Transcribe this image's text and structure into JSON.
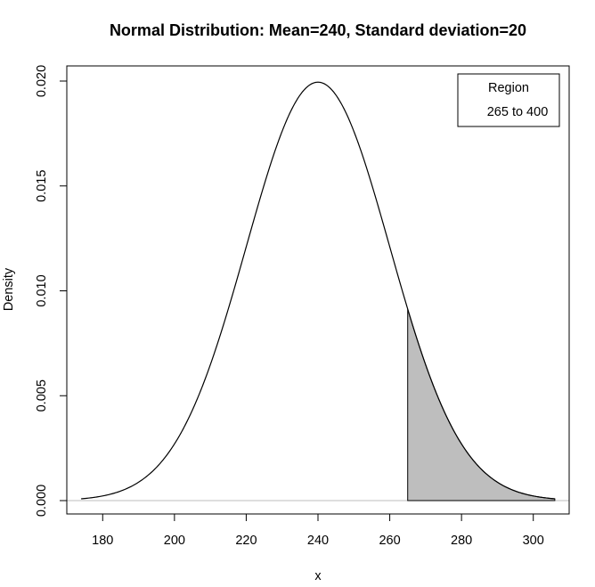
{
  "chart_data": {
    "type": "area",
    "title": "Normal Distribution:  Mean=240, Standard deviation=20",
    "xlabel": "x",
    "ylabel": "Density",
    "distribution": {
      "mean": 240,
      "sd": 20
    },
    "curve_x_range": [
      174,
      306
    ],
    "shaded_region": {
      "from": 265,
      "to": 306
    },
    "xlim": [
      170,
      310
    ],
    "ylim": [
      0,
      0.0205
    ],
    "x_ticks": [
      180,
      200,
      220,
      240,
      260,
      280,
      300
    ],
    "y_ticks": [
      0.0,
      0.005,
      0.01,
      0.015,
      0.02
    ],
    "x_tick_labels": [
      "180",
      "200",
      "220",
      "240",
      "260",
      "280",
      "300"
    ],
    "y_tick_labels": [
      "0.000",
      "0.005",
      "0.010",
      "0.015",
      "0.020"
    ],
    "legend": {
      "title": "Region",
      "entries": [
        "265 to 400"
      ],
      "position": "top-right"
    },
    "colors": {
      "fill": "#bebebe",
      "curve": "#000000",
      "baseline": "#bebebe"
    },
    "grid": false
  }
}
